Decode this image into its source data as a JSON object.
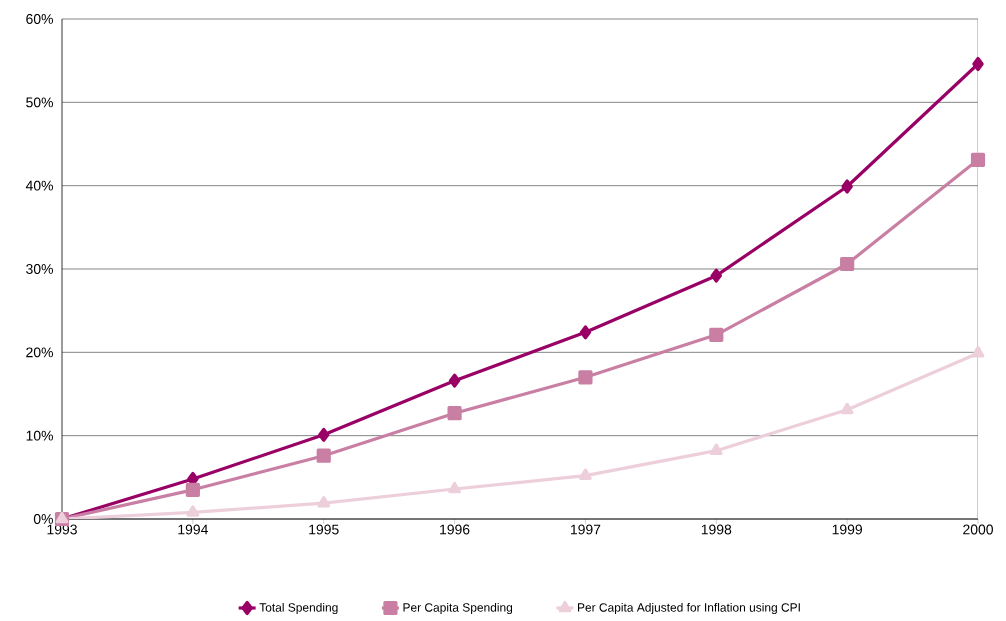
{
  "chart_data": {
    "type": "line",
    "x": [
      1993,
      1994,
      1995,
      1996,
      1997,
      1998,
      1999,
      2000
    ],
    "xlim": [
      1993,
      2000
    ],
    "xticks": [
      1993,
      1994,
      1995,
      1996,
      1997,
      1998,
      1999,
      2000
    ],
    "ylim": [
      0,
      60
    ],
    "yticks": [
      {
        "value": 0,
        "label": "0%"
      },
      {
        "value": 10,
        "label": "10%"
      },
      {
        "value": 20,
        "label": "20%"
      },
      {
        "value": 30,
        "label": "30%"
      },
      {
        "value": 40,
        "label": "40%"
      },
      {
        "value": 50,
        "label": "50%"
      },
      {
        "value": 60,
        "label": "60%"
      }
    ],
    "grid": "y",
    "legend": "bottom",
    "line_style": "solid",
    "series": [
      {
        "name": "Total Spending",
        "color": "#990066",
        "marker": "diamond",
        "values": [
          0,
          4.8,
          10.1,
          16.6,
          22.4,
          29.2,
          39.9,
          54.6
        ]
      },
      {
        "name": "Per Capita Spending",
        "color": "#c97fa3",
        "marker": "square",
        "values": [
          0,
          3.5,
          7.6,
          12.7,
          17.0,
          22.1,
          30.6,
          43.1
        ]
      },
      {
        "name": "Per Capita Adjusted for Inflation using CPI",
        "color": "#edcfdc",
        "marker": "triangle",
        "values": [
          0,
          0.8,
          1.9,
          3.6,
          5.2,
          8.2,
          13.1,
          19.9
        ]
      }
    ]
  }
}
